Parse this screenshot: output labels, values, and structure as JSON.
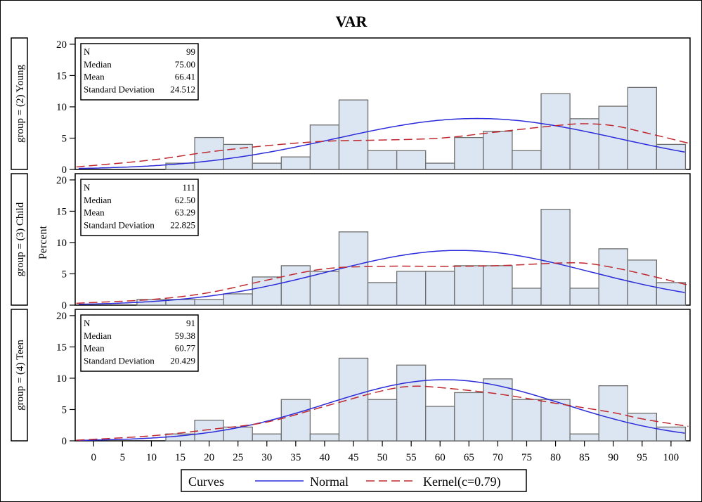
{
  "chart_data": {
    "type": "bar",
    "title": "VAR",
    "ylabel": "Percent",
    "xlabel": "",
    "xlim": [
      -3.2,
      103.3
    ],
    "ylim": [
      0,
      21
    ],
    "bin_width": 5,
    "x_ticks": [
      0,
      5,
      10,
      15,
      20,
      25,
      30,
      35,
      40,
      45,
      50,
      55,
      60,
      65,
      70,
      75,
      80,
      85,
      90,
      95,
      100
    ],
    "y_ticks": [
      0,
      5,
      10,
      15,
      20
    ],
    "bin_midpoints": [
      15,
      20,
      25,
      30,
      35,
      40,
      45,
      50,
      55,
      60,
      65,
      70,
      75,
      80,
      85,
      90,
      95,
      100
    ],
    "panels": [
      {
        "strip_label": "group = (2) Young",
        "stats": [
          {
            "label": "N",
            "value": "99"
          },
          {
            "label": "Median",
            "value": "75.00"
          },
          {
            "label": "Mean",
            "value": "66.41"
          },
          {
            "label": "Standard Deviation",
            "value": "24.512"
          }
        ],
        "mean": 66.41,
        "sd": 24.512,
        "bins": [
          {
            "x": 15,
            "y": 1.0
          },
          {
            "x": 20,
            "y": 5.1
          },
          {
            "x": 25,
            "y": 4.0
          },
          {
            "x": 30,
            "y": 1.0
          },
          {
            "x": 35,
            "y": 2.0
          },
          {
            "x": 40,
            "y": 7.1
          },
          {
            "x": 45,
            "y": 11.1
          },
          {
            "x": 50,
            "y": 3.0
          },
          {
            "x": 55,
            "y": 3.0
          },
          {
            "x": 60,
            "y": 1.0
          },
          {
            "x": 65,
            "y": 5.1
          },
          {
            "x": 70,
            "y": 6.1
          },
          {
            "x": 75,
            "y": 3.0
          },
          {
            "x": 80,
            "y": 12.1
          },
          {
            "x": 85,
            "y": 8.1
          },
          {
            "x": 90,
            "y": 10.1
          },
          {
            "x": 95,
            "y": 13.1
          },
          {
            "x": 100,
            "y": 4.0
          }
        ],
        "kernel": [
          [
            -3,
            0.4
          ],
          [
            10,
            1.5
          ],
          [
            20,
            2.8
          ],
          [
            30,
            3.8
          ],
          [
            40,
            4.5
          ],
          [
            50,
            4.7
          ],
          [
            60,
            5.0
          ],
          [
            70,
            6.0
          ],
          [
            80,
            7.0
          ],
          [
            85,
            7.3
          ],
          [
            90,
            7.0
          ],
          [
            95,
            6.0
          ],
          [
            103,
            4.2
          ]
        ]
      },
      {
        "strip_label": "group = (3) Child",
        "stats": [
          {
            "label": "N",
            "value": "111"
          },
          {
            "label": "Median",
            "value": "62.50"
          },
          {
            "label": "Mean",
            "value": "63.29"
          },
          {
            "label": "Standard Deviation",
            "value": "22.825"
          }
        ],
        "mean": 63.29,
        "sd": 22.825,
        "bins": [
          {
            "x": 10,
            "y": 0.9
          },
          {
            "x": 15,
            "y": 0.9
          },
          {
            "x": 20,
            "y": 0.9
          },
          {
            "x": 25,
            "y": 1.8
          },
          {
            "x": 30,
            "y": 4.5
          },
          {
            "x": 35,
            "y": 6.3
          },
          {
            "x": 40,
            "y": 5.4
          },
          {
            "x": 45,
            "y": 11.7
          },
          {
            "x": 50,
            "y": 3.6
          },
          {
            "x": 55,
            "y": 5.4
          },
          {
            "x": 60,
            "y": 5.4
          },
          {
            "x": 65,
            "y": 6.3
          },
          {
            "x": 70,
            "y": 6.3
          },
          {
            "x": 75,
            "y": 2.7
          },
          {
            "x": 80,
            "y": 15.3
          },
          {
            "x": 85,
            "y": 2.7
          },
          {
            "x": 90,
            "y": 9.0
          },
          {
            "x": 95,
            "y": 7.2
          },
          {
            "x": 100,
            "y": 3.6
          }
        ],
        "kernel": [
          [
            -3,
            0.3
          ],
          [
            10,
            0.9
          ],
          [
            20,
            2.0
          ],
          [
            30,
            4.0
          ],
          [
            40,
            5.8
          ],
          [
            50,
            6.2
          ],
          [
            60,
            6.2
          ],
          [
            70,
            6.3
          ],
          [
            80,
            6.7
          ],
          [
            85,
            6.7
          ],
          [
            90,
            6.0
          ],
          [
            95,
            5.0
          ],
          [
            103,
            3.2
          ]
        ]
      },
      {
        "strip_label": "group = (4) Teen",
        "stats": [
          {
            "label": "N",
            "value": "91"
          },
          {
            "label": "Median",
            "value": "59.38"
          },
          {
            "label": "Mean",
            "value": "60.77"
          },
          {
            "label": "Standard Deviation",
            "value": "20.429"
          }
        ],
        "mean": 60.77,
        "sd": 20.429,
        "bins": [
          {
            "x": 15,
            "y": 1.1
          },
          {
            "x": 20,
            "y": 3.3
          },
          {
            "x": 25,
            "y": 2.2
          },
          {
            "x": 30,
            "y": 1.1
          },
          {
            "x": 35,
            "y": 6.6
          },
          {
            "x": 40,
            "y": 1.1
          },
          {
            "x": 45,
            "y": 13.2
          },
          {
            "x": 50,
            "y": 6.6
          },
          {
            "x": 55,
            "y": 12.1
          },
          {
            "x": 60,
            "y": 5.5
          },
          {
            "x": 65,
            "y": 7.7
          },
          {
            "x": 70,
            "y": 9.9
          },
          {
            "x": 75,
            "y": 6.6
          },
          {
            "x": 80,
            "y": 6.6
          },
          {
            "x": 85,
            "y": 1.1
          },
          {
            "x": 90,
            "y": 8.8
          },
          {
            "x": 95,
            "y": 4.4
          },
          {
            "x": 100,
            "y": 2.2
          }
        ],
        "kernel": [
          [
            -3,
            0.1
          ],
          [
            10,
            0.8
          ],
          [
            20,
            1.8
          ],
          [
            30,
            3.0
          ],
          [
            40,
            5.5
          ],
          [
            50,
            8.0
          ],
          [
            55,
            8.7
          ],
          [
            60,
            8.5
          ],
          [
            70,
            7.5
          ],
          [
            80,
            6.0
          ],
          [
            90,
            4.5
          ],
          [
            95,
            3.5
          ],
          [
            103,
            2.3
          ]
        ]
      }
    ],
    "legend": {
      "title": "Curves",
      "placement": "bottom",
      "entries": [
        {
          "label": "Normal",
          "color": "#2b2bd9",
          "style": "solid"
        },
        {
          "label": "Kernel(c=0.79)",
          "color": "#c0282f",
          "style": "dashed"
        }
      ]
    },
    "colors": {
      "bar_fill": "#dce6f2",
      "bar_stroke": "#6e6e6e",
      "normal": "#2b2bd9",
      "kernel": "#c0282f"
    }
  }
}
